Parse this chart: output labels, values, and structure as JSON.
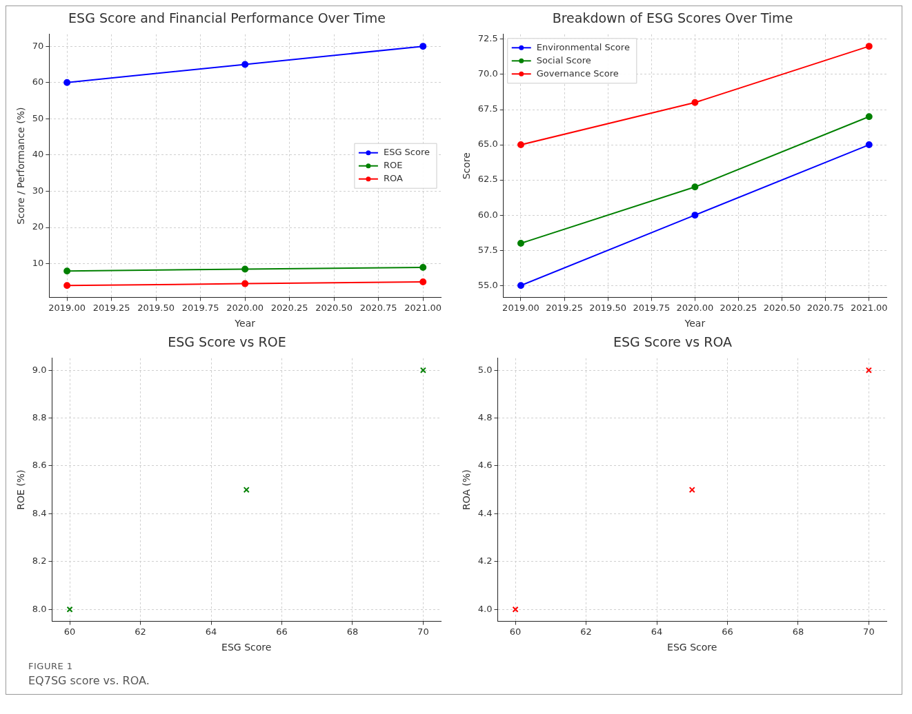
{
  "chart_data": [
    {
      "type": "line",
      "title": "ESG Score and Financial Performance Over Time",
      "xlabel": "Year",
      "ylabel": "Score / Performance (%)",
      "x": [
        2019,
        2020,
        2021
      ],
      "series": [
        {
          "name": "ESG Score",
          "color": "#0000ff",
          "values": [
            60,
            65,
            70
          ]
        },
        {
          "name": "ROE",
          "color": "#008000",
          "values": [
            8,
            8.5,
            9
          ]
        },
        {
          "name": "ROA",
          "color": "#ff0000",
          "values": [
            4,
            4.5,
            5
          ]
        }
      ],
      "xlim": [
        2018.9,
        2021.1
      ],
      "ylim": [
        0.7,
        73.3
      ],
      "xticks": [
        {
          "value": 2019,
          "label": "2019.00"
        },
        {
          "value": 2019.25,
          "label": "2019.25"
        },
        {
          "value": 2019.5,
          "label": "2019.50"
        },
        {
          "value": 2019.75,
          "label": "2019.75"
        },
        {
          "value": 2020,
          "label": "2020.00"
        },
        {
          "value": 2020.25,
          "label": "2020.25"
        },
        {
          "value": 2020.5,
          "label": "2020.50"
        },
        {
          "value": 2020.75,
          "label": "2020.75"
        },
        {
          "value": 2021,
          "label": "2021.00"
        }
      ],
      "yticks": [
        10,
        20,
        30,
        40,
        50,
        60,
        70
      ],
      "grid": true,
      "legend": "center right",
      "marker": "circle",
      "line_style": "solid"
    },
    {
      "type": "line",
      "title": "Breakdown of ESG Scores Over Time",
      "xlabel": "Year",
      "ylabel": "Score",
      "x": [
        2019,
        2020,
        2021
      ],
      "series": [
        {
          "name": "Environmental Score",
          "color": "#0000ff",
          "values": [
            55,
            60,
            65
          ]
        },
        {
          "name": "Social Score",
          "color": "#008000",
          "values": [
            58,
            62,
            67
          ]
        },
        {
          "name": "Governance Score",
          "color": "#ff0000",
          "values": [
            65,
            68,
            72
          ]
        }
      ],
      "xlim": [
        2018.9,
        2021.1
      ],
      "ylim": [
        54.15,
        72.85
      ],
      "xticks": [
        {
          "value": 2019,
          "label": "2019.00"
        },
        {
          "value": 2019.25,
          "label": "2019.25"
        },
        {
          "value": 2019.5,
          "label": "2019.50"
        },
        {
          "value": 2019.75,
          "label": "2019.75"
        },
        {
          "value": 2020,
          "label": "2020.00"
        },
        {
          "value": 2020.25,
          "label": "2020.25"
        },
        {
          "value": 2020.5,
          "label": "2020.50"
        },
        {
          "value": 2020.75,
          "label": "2020.75"
        },
        {
          "value": 2021,
          "label": "2021.00"
        }
      ],
      "yticks": [
        {
          "value": 55,
          "label": "55.0"
        },
        {
          "value": 57.5,
          "label": "57.5"
        },
        {
          "value": 60,
          "label": "60.0"
        },
        {
          "value": 62.5,
          "label": "62.5"
        },
        {
          "value": 65,
          "label": "65.0"
        },
        {
          "value": 67.5,
          "label": "67.5"
        },
        {
          "value": 70,
          "label": "70.0"
        },
        {
          "value": 72.5,
          "label": "72.5"
        }
      ],
      "grid": true,
      "legend": "top left",
      "marker": "circle",
      "line_style": "solid"
    },
    {
      "type": "scatter",
      "title": "ESG Score vs ROE",
      "xlabel": "ESG Score",
      "ylabel": "ROE (%)",
      "x": [
        60,
        65,
        70
      ],
      "series": [
        {
          "color": "#008000",
          "values": [
            8,
            8.5,
            9
          ]
        }
      ],
      "xlim": [
        59.5,
        70.5
      ],
      "ylim": [
        7.95,
        9.05
      ],
      "xticks": [
        60,
        62,
        64,
        66,
        68,
        70
      ],
      "yticks": [
        {
          "value": 8,
          "label": "8.0"
        },
        {
          "value": 8.2,
          "label": "8.2"
        },
        {
          "value": 8.4,
          "label": "8.4"
        },
        {
          "value": 8.6,
          "label": "8.6"
        },
        {
          "value": 8.8,
          "label": "8.8"
        },
        {
          "value": 9,
          "label": "9.0"
        }
      ],
      "grid": true,
      "marker": "cross"
    },
    {
      "type": "scatter",
      "title": "ESG Score vs ROA",
      "xlabel": "ESG Score",
      "ylabel": "ROA (%)",
      "x": [
        60,
        65,
        70
      ],
      "series": [
        {
          "color": "#ff0000",
          "values": [
            4,
            4.5,
            5
          ]
        }
      ],
      "xlim": [
        59.5,
        70.5
      ],
      "ylim": [
        3.95,
        5.05
      ],
      "xticks": [
        60,
        62,
        64,
        66,
        68,
        70
      ],
      "yticks": [
        {
          "value": 4,
          "label": "4.0"
        },
        {
          "value": 4.2,
          "label": "4.2"
        },
        {
          "value": 4.4,
          "label": "4.4"
        },
        {
          "value": 4.6,
          "label": "4.6"
        },
        {
          "value": 4.8,
          "label": "4.8"
        },
        {
          "value": 5,
          "label": "5.0"
        }
      ],
      "grid": true,
      "marker": "cross",
      "annotations": [
        "FIGURE 1",
        "EQ7SG score vs. ROA."
      ]
    }
  ]
}
